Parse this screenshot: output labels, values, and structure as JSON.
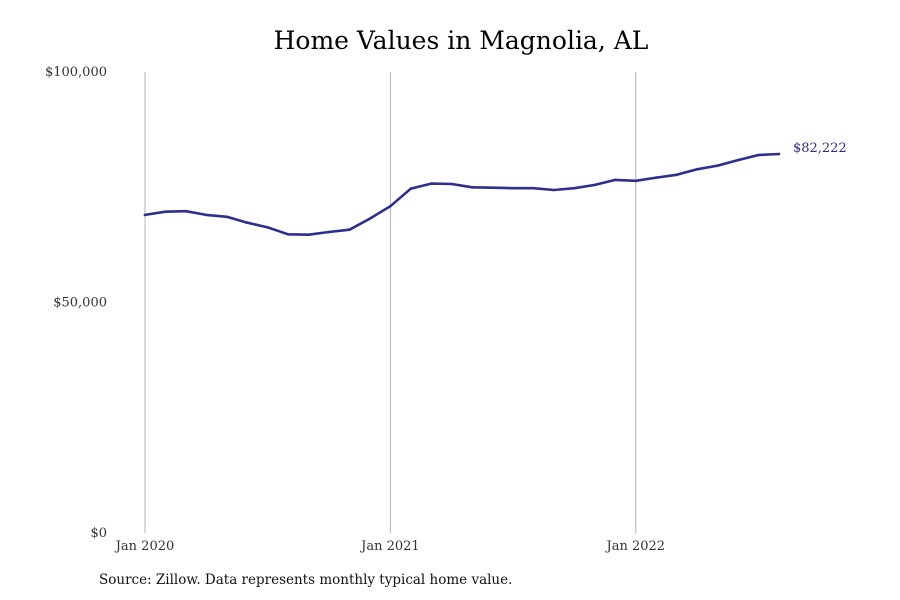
{
  "chart_data": {
    "type": "line",
    "title": "Home Values in Magnolia, AL",
    "xlabel": "",
    "ylabel": "",
    "ylim": [
      0,
      100000
    ],
    "yticks": [
      {
        "value": 0,
        "label": "$0"
      },
      {
        "value": 50000,
        "label": "$50,000"
      },
      {
        "value": 100000,
        "label": "$100,000"
      }
    ],
    "xticks": [
      {
        "date": "2020-01",
        "label": "Jan 2020"
      },
      {
        "date": "2021-01",
        "label": "Jan 2021"
      },
      {
        "date": "2022-01",
        "label": "Jan 2022"
      }
    ],
    "grid": "vertical at x ticks",
    "line_color": "#2e2e8f",
    "end_label": "$82,222",
    "series": [
      {
        "x": [
          "2020-01",
          "2020-02",
          "2020-03",
          "2020-04",
          "2020-05",
          "2020-06",
          "2020-07",
          "2020-08",
          "2020-09",
          "2020-10",
          "2020-11",
          "2020-12",
          "2021-01",
          "2021-02",
          "2021-03",
          "2021-04",
          "2021-05",
          "2021-06",
          "2021-07",
          "2021-08",
          "2021-09",
          "2021-10",
          "2021-11",
          "2021-12",
          "2022-01",
          "2022-02",
          "2022-03",
          "2022-04",
          "2022-05",
          "2022-06",
          "2022-07",
          "2022-08"
        ],
        "values": [
          69000,
          69700,
          69800,
          69000,
          68600,
          67300,
          66300,
          64800,
          64700,
          65300,
          65800,
          68200,
          70900,
          74700,
          75800,
          75700,
          75000,
          74900,
          74800,
          74800,
          74400,
          74800,
          75500,
          76600,
          76400,
          77100,
          77700,
          78900,
          79700,
          80900,
          82000,
          82222
        ]
      }
    ]
  },
  "footer": {
    "source": "Source: Zillow. Data represents monthly typical home value."
  }
}
